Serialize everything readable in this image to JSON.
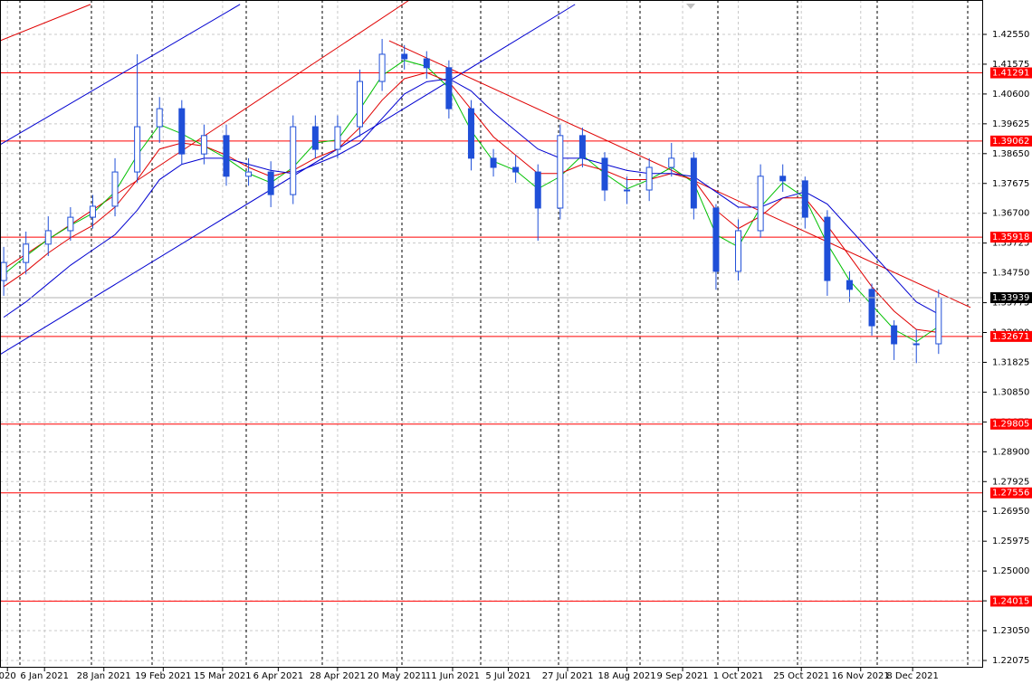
{
  "chart_data": {
    "type": "candlestick",
    "x": [
      0,
      6,
      12,
      18,
      24,
      30,
      36,
      42,
      48,
      54,
      60,
      66,
      72,
      78,
      84,
      90,
      96,
      102,
      108,
      114,
      120,
      126,
      132,
      138,
      144,
      150,
      156,
      162,
      168,
      174,
      180,
      186,
      192,
      198,
      204,
      210,
      216,
      222,
      228,
      234,
      240,
      246,
      252
    ],
    "open": [
      1.345,
      1.3509,
      1.3569,
      1.3613,
      1.3657,
      1.3693,
      1.3805,
      1.3953,
      1.4012,
      1.3864,
      1.3924,
      1.3791,
      1.3805,
      1.3731,
      1.3953,
      1.3879,
      1.3953,
      1.4101,
      1.419,
      1.4175,
      1.4146,
      1.4012,
      1.385,
      1.382,
      1.3805,
      1.3687,
      1.3924,
      1.385,
      1.3746,
      1.3746,
      1.382,
      1.385,
      1.3687,
      1.348,
      1.3613,
      1.3791,
      1.3776,
      1.3657,
      1.345,
      1.3421,
      1.3302,
      1.3243,
      1.3243
    ],
    "high": [
      1.356,
      1.361,
      1.366,
      1.369,
      1.373,
      1.385,
      1.419,
      1.405,
      1.404,
      1.396,
      1.396,
      1.385,
      1.384,
      1.399,
      1.399,
      1.399,
      1.414,
      1.424,
      1.422,
      1.42,
      1.417,
      1.404,
      1.388,
      1.386,
      1.383,
      1.396,
      1.395,
      1.387,
      1.379,
      1.385,
      1.39,
      1.387,
      1.37,
      1.365,
      1.383,
      1.383,
      1.379,
      1.368,
      1.348,
      1.344,
      1.332,
      1.329,
      1.342
    ],
    "low": [
      1.34,
      1.347,
      1.353,
      1.358,
      1.362,
      1.366,
      1.377,
      1.39,
      1.383,
      1.383,
      1.376,
      1.376,
      1.369,
      1.37,
      1.385,
      1.385,
      1.392,
      1.407,
      1.414,
      1.411,
      1.398,
      1.381,
      1.379,
      1.377,
      1.358,
      1.365,
      1.382,
      1.371,
      1.37,
      1.371,
      1.379,
      1.365,
      1.342,
      1.345,
      1.359,
      1.374,
      1.362,
      1.34,
      1.338,
      1.327,
      1.319,
      1.318,
      1.321
    ],
    "close": [
      1.3509,
      1.3569,
      1.3613,
      1.3657,
      1.3693,
      1.3805,
      1.3953,
      1.4012,
      1.3864,
      1.3924,
      1.3791,
      1.3805,
      1.3731,
      1.3953,
      1.3879,
      1.3953,
      1.4101,
      1.419,
      1.4175,
      1.4146,
      1.4012,
      1.385,
      1.382,
      1.3805,
      1.3687,
      1.3924,
      1.385,
      1.3746,
      1.3746,
      1.382,
      1.385,
      1.3687,
      1.348,
      1.3613,
      1.3791,
      1.3776,
      1.3657,
      1.345,
      1.3421,
      1.3302,
      1.3243,
      1.3243,
      1.3394
    ],
    "candle_color": "#1f4fd8",
    "series": [
      {
        "color": "#00c000",
        "values": [
          1.347,
          1.353,
          1.3585,
          1.363,
          1.367,
          1.374,
          1.386,
          1.396,
          1.393,
          1.389,
          1.385,
          1.38,
          1.377,
          1.382,
          1.39,
          1.391,
          1.401,
          1.412,
          1.417,
          1.415,
          1.408,
          1.394,
          1.384,
          1.381,
          1.375,
          1.379,
          1.386,
          1.38,
          1.375,
          1.378,
          1.382,
          1.377,
          1.36,
          1.356,
          1.369,
          1.377,
          1.372,
          1.357,
          1.345,
          1.337,
          1.329,
          1.325,
          1.33
        ]
      },
      {
        "color": "#e00000",
        "values": [
          1.343,
          1.348,
          1.354,
          1.359,
          1.363,
          1.369,
          1.378,
          1.388,
          1.39,
          1.389,
          1.386,
          1.382,
          1.379,
          1.381,
          1.385,
          1.388,
          1.395,
          1.404,
          1.411,
          1.413,
          1.41,
          1.401,
          1.392,
          1.386,
          1.38,
          1.38,
          1.383,
          1.381,
          1.378,
          1.378,
          1.38,
          1.378,
          1.368,
          1.362,
          1.366,
          1.372,
          1.372,
          1.363,
          1.353,
          1.343,
          1.335,
          1.329,
          1.328
        ]
      },
      {
        "color": "#0000d0",
        "values": [
          1.333,
          1.338,
          1.344,
          1.35,
          1.355,
          1.36,
          1.368,
          1.378,
          1.383,
          1.385,
          1.385,
          1.383,
          1.381,
          1.38,
          1.383,
          1.386,
          1.39,
          1.398,
          1.406,
          1.41,
          1.411,
          1.407,
          1.4,
          1.394,
          1.388,
          1.385,
          1.385,
          1.383,
          1.381,
          1.38,
          1.38,
          1.379,
          1.374,
          1.369,
          1.369,
          1.372,
          1.374,
          1.37,
          1.362,
          1.354,
          1.346,
          1.338,
          1.334
        ]
      }
    ],
    "trendlines": [
      {
        "color": "#e00000",
        "x": [
          -1,
          23.4
        ],
        "y": [
          1.4234,
          1.4353
        ]
      },
      {
        "color": "#e00000",
        "x": [
          -1,
          109.3
        ],
        "y": [
          1.348,
          1.4367
        ]
      },
      {
        "color": "#0000d0",
        "x": [
          -1,
          63.7
        ],
        "y": [
          1.3894,
          1.4353
        ]
      },
      {
        "color": "#0000d0",
        "x": [
          -1,
          154.0
        ],
        "y": [
          1.3208,
          1.4353
        ]
      },
      {
        "color": "#e00000",
        "x": [
          103.9,
          260.6
        ],
        "y": [
          1.4234,
          1.3362
        ]
      }
    ],
    "levels": [
      1.41291,
      1.39062,
      1.35918,
      1.32671,
      1.29805,
      1.27556,
      1.24015
    ],
    "level_color": "#ff0000",
    "last_price": 1.33939,
    "xlim": [
      -1,
      264
    ],
    "ylim": [
      1.21838,
      1.43674
    ],
    "xticks": [
      {
        "value": 1,
        "label": "020"
      },
      {
        "value": 11,
        "label": "6 Jan 2021"
      },
      {
        "value": 27,
        "label": "28 Jan 2021"
      },
      {
        "value": 43,
        "label": "19 Feb 2021"
      },
      {
        "value": 59,
        "label": "15 Mar 2021"
      },
      {
        "value": 74,
        "label": "6 Apr 2021"
      },
      {
        "value": 90,
        "label": "28 Apr 2021"
      },
      {
        "value": 106,
        "label": "20 May 2021"
      },
      {
        "value": 121,
        "label": "11 Jun 2021"
      },
      {
        "value": 136,
        "label": "5 Jul 2021"
      },
      {
        "value": 152,
        "label": "27 Jul 2021"
      },
      {
        "value": 168,
        "label": "18 Aug 2021"
      },
      {
        "value": 183,
        "label": "9 Sep 2021"
      },
      {
        "value": 198,
        "label": "1 Oct 2021"
      },
      {
        "value": 215,
        "label": "25 Oct 2021"
      },
      {
        "value": 231,
        "label": "16 Nov 2021"
      },
      {
        "value": 245,
        "label": "8 Dec 2021"
      }
    ],
    "yticks": [
      {
        "value": 1.4255,
        "label": "1.42550"
      },
      1.41575,
      {
        "value": 1.406,
        "label": "1.40600"
      },
      1.39625,
      {
        "value": 1.3865,
        "label": "1.38650"
      },
      1.37675,
      {
        "value": 1.367,
        "label": "1.36700"
      },
      1.35725,
      {
        "value": 1.3475,
        "label": "1.34750"
      },
      1.33775,
      {
        "value": 1.328,
        "label": "1.32800"
      },
      1.31825,
      {
        "value": 1.3085,
        "label": "1.30850"
      },
      1.29875,
      {
        "value": 1.289,
        "label": "1.28900"
      },
      1.27925,
      {
        "value": 1.2695,
        "label": "1.26950"
      },
      1.25975,
      {
        "value": 1.25,
        "label": "1.25000"
      },
      1.24025,
      {
        "value": 1.2305,
        "label": "1.23050"
      },
      1.22075
    ],
    "grid": true
  }
}
